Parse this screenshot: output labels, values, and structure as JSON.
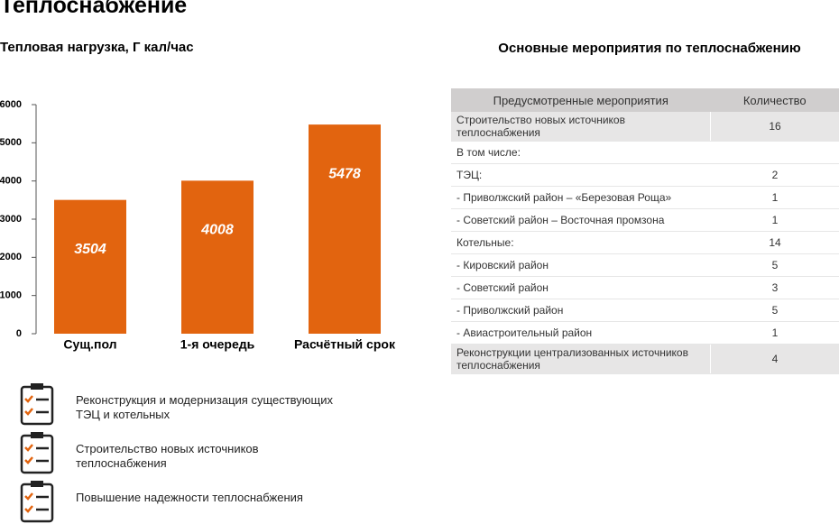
{
  "title": "Теплоснабжение",
  "chart_data": {
    "type": "bar",
    "title": "Тепловая нагрузка, Г кал/час",
    "categories": [
      "Сущ.пол",
      "1-я очередь",
      "Расчётный срок"
    ],
    "values": [
      3504,
      4008,
      5478
    ],
    "color": "#e2640f",
    "ylim": [
      0,
      6000
    ],
    "yticks": [
      0,
      1000,
      2000,
      3000,
      4000,
      5000,
      6000
    ]
  },
  "table": {
    "title": "Основные мероприятия по теплоснабжению",
    "header": [
      "Предусмотренные мероприятия",
      "Количество"
    ],
    "rows": [
      [
        "Строительство новых источников теплоснабжения",
        "16"
      ],
      [
        "В том числе:",
        null
      ],
      [
        "ТЭЦ:",
        "2"
      ],
      [
        "- Приволжский район – «Березовая Роща»",
        "1"
      ],
      [
        "- Советский район – Восточная промзона",
        "1"
      ],
      [
        "Котельные:",
        "14"
      ],
      [
        "- Кировский район",
        "5"
      ],
      [
        "- Советский район",
        "3"
      ],
      [
        "- Приволжский район",
        "5"
      ],
      [
        "- Авиастроительный район",
        "1"
      ],
      [
        "Реконструкции централизованных источников теплоснабжения",
        "4"
      ]
    ]
  },
  "measures": [
    "Реконструкция и модернизация существующих ТЭЦ и котельных",
    "Строительство новых источников теплоснабжения",
    "Повышение надежности теплоснабжения"
  ]
}
